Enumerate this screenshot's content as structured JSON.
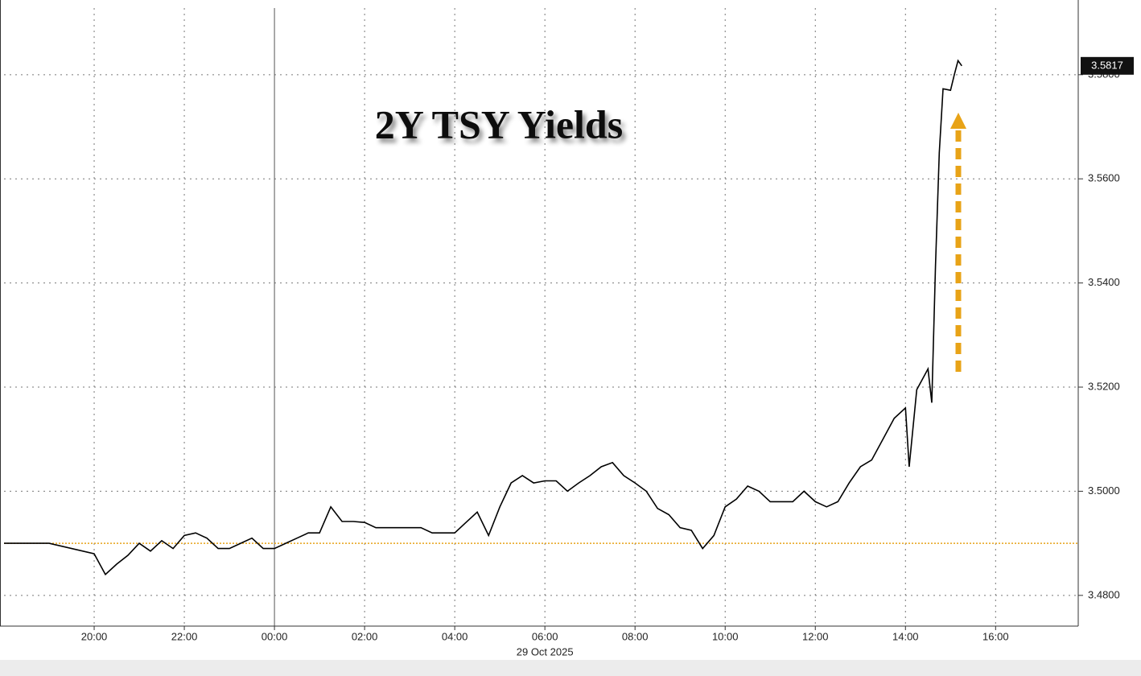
{
  "chart_data": {
    "type": "line",
    "title": "2Y TSY Yields",
    "date_label": "29 Oct 2025",
    "x": [
      "18:00",
      "19:00",
      "20:00",
      "20:15",
      "20:30",
      "20:45",
      "21:00",
      "21:15",
      "21:30",
      "21:45",
      "22:00",
      "22:15",
      "22:30",
      "22:45",
      "23:00",
      "23:15",
      "23:30",
      "23:45",
      "00:00",
      "00:15",
      "00:30",
      "00:45",
      "01:00",
      "01:15",
      "01:30",
      "01:45",
      "02:00",
      "02:15",
      "02:30",
      "02:45",
      "03:00",
      "03:15",
      "03:30",
      "03:45",
      "04:00",
      "04:15",
      "04:30",
      "04:45",
      "05:00",
      "05:15",
      "05:30",
      "05:45",
      "06:00",
      "06:15",
      "06:30",
      "06:45",
      "07:00",
      "07:15",
      "07:30",
      "07:45",
      "08:00",
      "08:15",
      "08:30",
      "08:45",
      "09:00",
      "09:15",
      "09:30",
      "09:45",
      "10:00",
      "10:15",
      "10:30",
      "10:45",
      "11:00",
      "11:15",
      "11:30",
      "11:45",
      "12:00",
      "12:15",
      "12:30",
      "12:45",
      "13:00",
      "13:15",
      "13:30",
      "13:45",
      "14:00",
      "14:05",
      "14:15",
      "14:30",
      "14:35",
      "14:40",
      "14:45",
      "14:50",
      "15:00",
      "15:05",
      "15:10",
      "15:15"
    ],
    "series": [
      {
        "name": "2Y TSY Yield",
        "color": "#000000",
        "values": [
          3.49,
          3.49,
          3.488,
          3.484,
          3.486,
          3.4877,
          3.49,
          3.4885,
          3.4905,
          3.489,
          3.4915,
          3.492,
          3.491,
          3.489,
          3.489,
          3.49,
          3.491,
          3.489,
          3.489,
          3.49,
          3.491,
          3.492,
          3.492,
          3.497,
          3.4942,
          3.4942,
          3.494,
          3.493,
          3.493,
          3.493,
          3.493,
          3.493,
          3.492,
          3.492,
          3.492,
          3.494,
          3.496,
          3.4915,
          3.497,
          3.5016,
          3.503,
          3.5016,
          3.502,
          3.502,
          3.5,
          3.5016,
          3.503,
          3.5047,
          3.5055,
          3.503,
          3.5016,
          3.5,
          3.4967,
          3.4955,
          3.493,
          3.4925,
          3.489,
          3.4915,
          3.497,
          3.4985,
          3.501,
          3.5,
          3.498,
          3.498,
          3.498,
          3.5,
          3.498,
          3.497,
          3.498,
          3.5016,
          3.5047,
          3.506,
          3.51,
          3.514,
          3.516,
          3.5047,
          3.5195,
          3.5235,
          3.517,
          3.5433,
          3.565,
          3.5773,
          3.577,
          3.58,
          3.5827,
          3.5817
        ]
      }
    ],
    "reference_line": {
      "value": 3.49,
      "color": "#e8a317"
    },
    "last_value": 3.5817,
    "xlim": [
      "18:00",
      "17:50"
    ],
    "xticks": [
      "20:00",
      "22:00",
      "00:00",
      "02:00",
      "04:00",
      "06:00",
      "08:00",
      "10:00",
      "12:00",
      "14:00",
      "16:00"
    ],
    "ylim": [
      3.4741,
      3.5928
    ],
    "yticks": [
      {
        "value": 3.48,
        "label": "3.4800"
      },
      {
        "value": 3.5,
        "label": "3.5000"
      },
      {
        "value": 3.52,
        "label": "3.5200"
      },
      {
        "value": 3.54,
        "label": "3.5400"
      },
      {
        "value": 3.56,
        "label": "3.5600"
      },
      {
        "value": 3.58,
        "label": "3.5800"
      }
    ],
    "grid": true
  }
}
